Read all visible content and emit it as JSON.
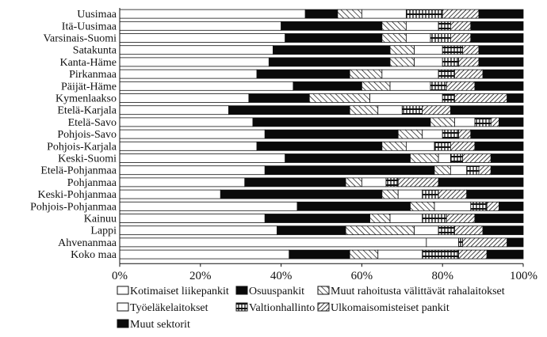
{
  "chart_data": {
    "type": "bar",
    "orientation": "horizontal",
    "stacked": true,
    "percent": true,
    "title": "",
    "xlabel": "",
    "ylabel": "",
    "xlim": [
      0,
      100
    ],
    "x_ticks": [
      "0%",
      "20%",
      "40%",
      "60%",
      "80%",
      "100%"
    ],
    "grid": false,
    "legend_position": "bottom",
    "categories": [
      "Uusimaa",
      "Itä-Uusimaa",
      "Varsinais-Suomi",
      "Satakunta",
      "Kanta-Häme",
      "Pirkanmaa",
      "Päijät-Häme",
      "Kymenlaakso",
      "Etelä-Karjala",
      "Etelä-Savo",
      "Pohjois-Savo",
      "Pohjois-Karjala",
      "Keski-Suomi",
      "Etelä-Pohjanmaa",
      "Pohjanmaa",
      "Keski-Pohjanmaa",
      "Pohjois-Pohjanmaa",
      "Kainuu",
      "Lappi",
      "Ahvenanmaa",
      "Koko maa"
    ],
    "series": [
      {
        "name": "Kotimaiset liikepankit",
        "pattern": "white",
        "values": [
          46,
          40,
          41,
          38,
          37,
          34,
          43,
          32,
          27,
          33,
          36,
          34,
          41,
          36,
          31,
          25,
          44,
          36,
          39,
          76,
          42
        ]
      },
      {
        "name": "Osuuspankit",
        "pattern": "black",
        "values": [
          8,
          25,
          24,
          29,
          30,
          23,
          17,
          15,
          30,
          44,
          33,
          31,
          31,
          42,
          25,
          40,
          28,
          26,
          17,
          0,
          15
        ]
      },
      {
        "name": "Muut rahoitusta välittävät rahalaitokset",
        "pattern": "hatch",
        "values": [
          6,
          6,
          6,
          6,
          6,
          8,
          7,
          15,
          7,
          6,
          6,
          6,
          7,
          4,
          4,
          4,
          6,
          5,
          17,
          0,
          7
        ]
      },
      {
        "name": "Työeläkelaitokset",
        "pattern": "white",
        "values": [
          11,
          8,
          6,
          7,
          7,
          14,
          10,
          18,
          6,
          5,
          5,
          7,
          3,
          4,
          6,
          6,
          9,
          8,
          6,
          8,
          11
        ]
      },
      {
        "name": "Valtionhallinto",
        "pattern": "grid",
        "values": [
          9,
          3,
          5,
          5,
          4,
          4,
          4,
          3,
          5,
          4,
          4,
          4,
          3,
          3,
          3,
          4,
          4,
          6,
          4,
          1,
          9
        ]
      },
      {
        "name": "Ulkomaisomisteiset pankit",
        "pattern": "diag",
        "values": [
          9,
          5,
          5,
          4,
          5,
          7,
          7,
          13,
          7,
          2,
          3,
          6,
          7,
          3,
          10,
          7,
          3,
          7,
          7,
          11,
          7
        ]
      },
      {
        "name": "Muut sektorit",
        "pattern": "black",
        "values": [
          11,
          13,
          13,
          11,
          11,
          10,
          12,
          4,
          18,
          6,
          13,
          12,
          8,
          8,
          21,
          14,
          6,
          12,
          10,
          4,
          9
        ]
      }
    ]
  }
}
